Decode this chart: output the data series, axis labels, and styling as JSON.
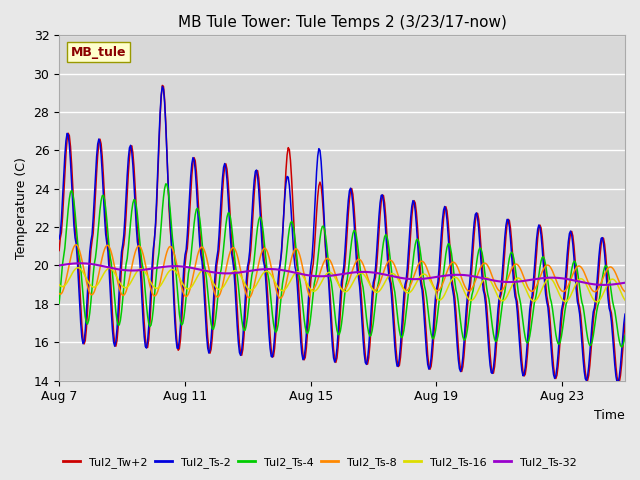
{
  "title": "MB Tule Tower: Tule Temps 2 (3/23/17-now)",
  "xlabel": "Time",
  "ylabel": "Temperature (C)",
  "ylim": [
    14,
    32
  ],
  "yticks": [
    14,
    16,
    18,
    20,
    22,
    24,
    26,
    28,
    30,
    32
  ],
  "bg_color": "#e8e8e8",
  "plot_bg_color": "#d8d8d8",
  "legend_label": "MB_tule",
  "series_colors": {
    "Tul2_Tw+2": "#cc0000",
    "Tul2_Ts-2": "#0000dd",
    "Tul2_Ts-4": "#00cc00",
    "Tul2_Ts-8": "#ff8800",
    "Tul2_Ts-16": "#dddd00",
    "Tul2_Ts-32": "#9900cc"
  },
  "xtick_labels": [
    "Aug 7",
    "Aug 11",
    "Aug 15",
    "Aug 19",
    "Aug 23"
  ],
  "xtick_positions": [
    0,
    4,
    8,
    12,
    16
  ]
}
